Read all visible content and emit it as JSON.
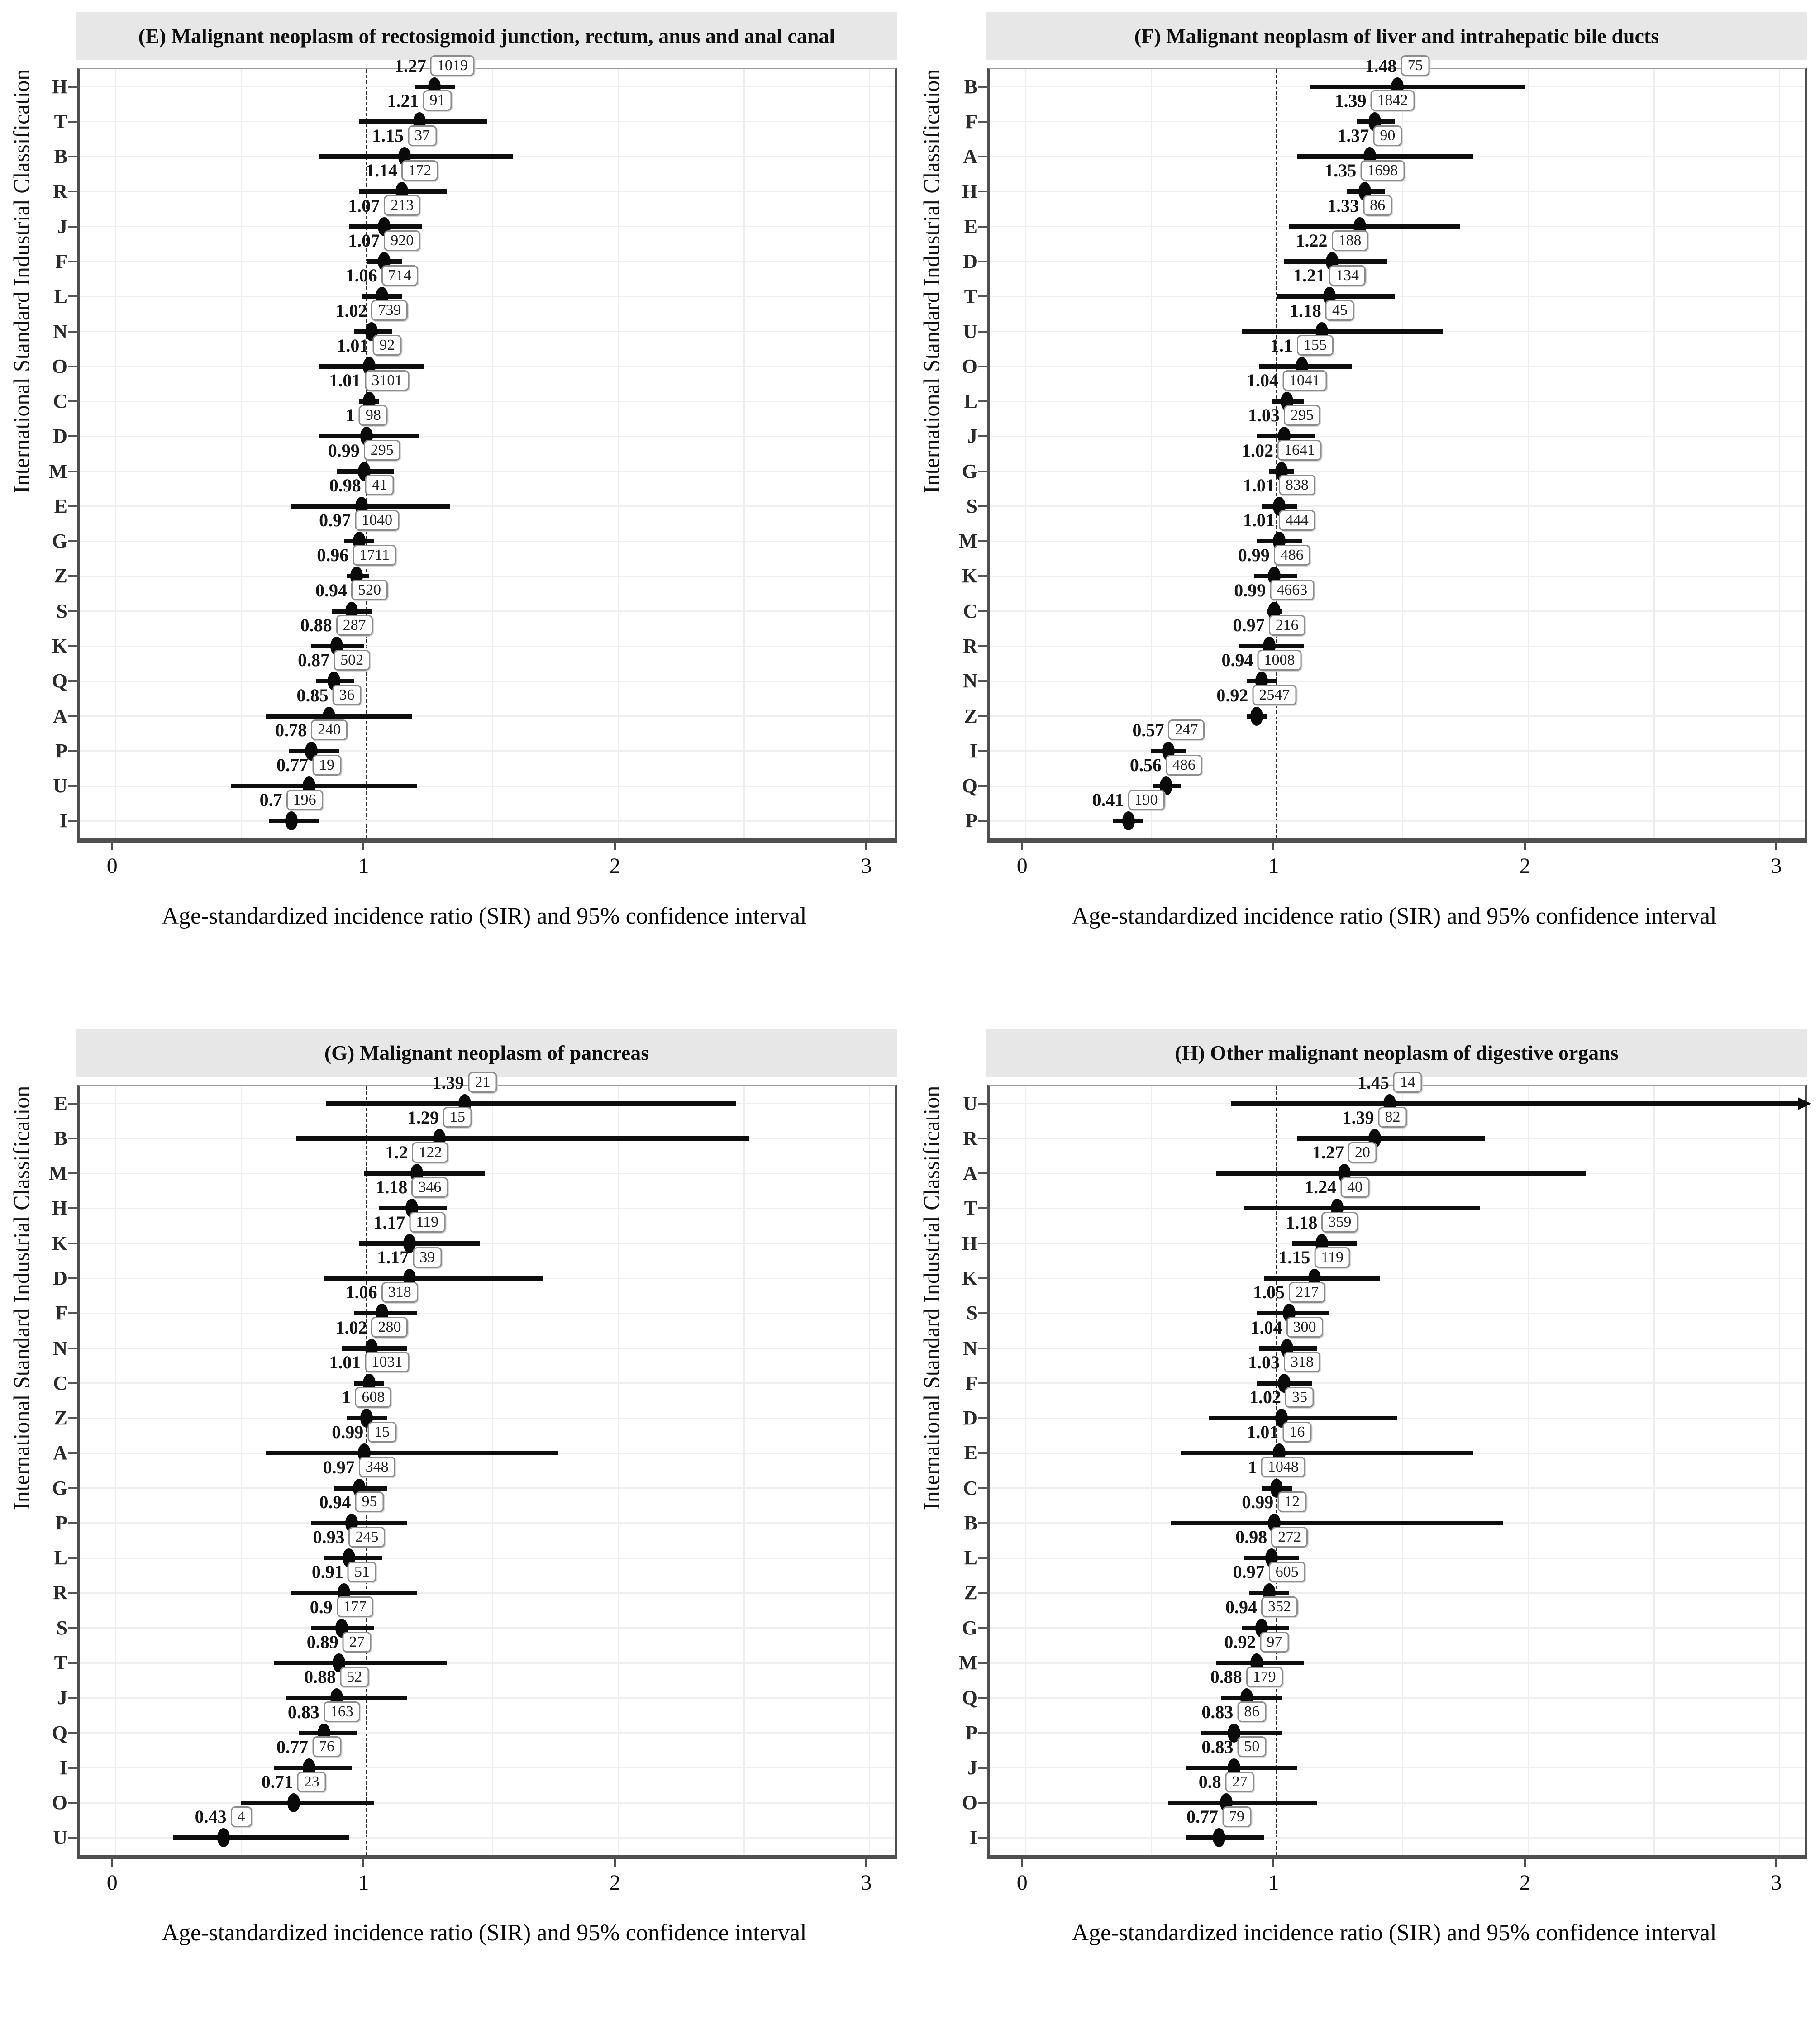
{
  "figure": {
    "ylabel": "International Standard Industrial Classification",
    "xlabel": "Age-standardized incidence ratio (SIR) and 95% confidence interval",
    "x_ticks": [
      0,
      1,
      2,
      3
    ],
    "x_min": -0.14,
    "x_max": 3.1,
    "ref_line": 1,
    "gridline_values": [
      0,
      0.5,
      1.5,
      2,
      2.5,
      3
    ],
    "point_color": "#0a0a0a",
    "title_bg": "#e7e7e7"
  },
  "chart_data": [
    {
      "type": "scatter",
      "panel": "E",
      "title": "(E) Malignant neoplasm of rectosigmoid junction, rectum, anus and anal canal",
      "xlabel": "Age-standardized incidence ratio (SIR) and 95% confidence interval",
      "ylabel": "International Standard Industrial Classification",
      "xlim": [
        -0.14,
        3.1
      ],
      "points": [
        {
          "category": "H",
          "sir": "1.27",
          "n": 1019,
          "ci_low": 1.19,
          "ci_high": 1.35
        },
        {
          "category": "T",
          "sir": "1.21",
          "n": 91,
          "ci_low": 0.97,
          "ci_high": 1.48
        },
        {
          "category": "B",
          "sir": "1.15",
          "n": 37,
          "ci_low": 0.81,
          "ci_high": 1.58
        },
        {
          "category": "R",
          "sir": "1.14",
          "n": 172,
          "ci_low": 0.97,
          "ci_high": 1.32
        },
        {
          "category": "J",
          "sir": "1.07",
          "n": 213,
          "ci_low": 0.93,
          "ci_high": 1.22
        },
        {
          "category": "F",
          "sir": "1.07",
          "n": 920,
          "ci_low": 1.0,
          "ci_high": 1.14
        },
        {
          "category": "L",
          "sir": "1.06",
          "n": 714,
          "ci_low": 0.98,
          "ci_high": 1.14
        },
        {
          "category": "N",
          "sir": "1.02",
          "n": 739,
          "ci_low": 0.95,
          "ci_high": 1.1
        },
        {
          "category": "O",
          "sir": "1.01",
          "n": 92,
          "ci_low": 0.81,
          "ci_high": 1.23
        },
        {
          "category": "C",
          "sir": "1.01",
          "n": 3101,
          "ci_low": 0.97,
          "ci_high": 1.05
        },
        {
          "category": "D",
          "sir": "1",
          "n": 98,
          "ci_low": 0.81,
          "ci_high": 1.21
        },
        {
          "category": "M",
          "sir": "0.99",
          "n": 295,
          "ci_low": 0.88,
          "ci_high": 1.11
        },
        {
          "category": "E",
          "sir": "0.98",
          "n": 41,
          "ci_low": 0.7,
          "ci_high": 1.33
        },
        {
          "category": "G",
          "sir": "0.97",
          "n": 1040,
          "ci_low": 0.91,
          "ci_high": 1.03
        },
        {
          "category": "Z",
          "sir": "0.96",
          "n": 1711,
          "ci_low": 0.92,
          "ci_high": 1.01
        },
        {
          "category": "S",
          "sir": "0.94",
          "n": 520,
          "ci_low": 0.86,
          "ci_high": 1.02
        },
        {
          "category": "K",
          "sir": "0.88",
          "n": 287,
          "ci_low": 0.78,
          "ci_high": 0.99
        },
        {
          "category": "Q",
          "sir": "0.87",
          "n": 502,
          "ci_low": 0.8,
          "ci_high": 0.95
        },
        {
          "category": "A",
          "sir": "0.85",
          "n": 36,
          "ci_low": 0.6,
          "ci_high": 1.18
        },
        {
          "category": "P",
          "sir": "0.78",
          "n": 240,
          "ci_low": 0.69,
          "ci_high": 0.89
        },
        {
          "category": "U",
          "sir": "0.77",
          "n": 19,
          "ci_low": 0.46,
          "ci_high": 1.2
        },
        {
          "category": "I",
          "sir": "0.7",
          "n": 196,
          "ci_low": 0.61,
          "ci_high": 0.81
        }
      ]
    },
    {
      "type": "scatter",
      "panel": "F",
      "title": "(F) Malignant neoplasm of liver and intrahepatic bile ducts",
      "xlabel": "Age-standardized incidence ratio (SIR) and 95% confidence interval",
      "ylabel": "International Standard Industrial Classification",
      "xlim": [
        -0.14,
        3.1
      ],
      "points": [
        {
          "category": "B",
          "sir": "1.48",
          "n": 75,
          "ci_low": 1.13,
          "ci_high": 1.99
        },
        {
          "category": "F",
          "sir": "1.39",
          "n": 1842,
          "ci_low": 1.32,
          "ci_high": 1.47
        },
        {
          "category": "A",
          "sir": "1.37",
          "n": 90,
          "ci_low": 1.08,
          "ci_high": 1.78
        },
        {
          "category": "H",
          "sir": "1.35",
          "n": 1698,
          "ci_low": 1.28,
          "ci_high": 1.43
        },
        {
          "category": "E",
          "sir": "1.33",
          "n": 86,
          "ci_low": 1.05,
          "ci_high": 1.73
        },
        {
          "category": "D",
          "sir": "1.22",
          "n": 188,
          "ci_low": 1.03,
          "ci_high": 1.44
        },
        {
          "category": "T",
          "sir": "1.21",
          "n": 134,
          "ci_low": 1.0,
          "ci_high": 1.47
        },
        {
          "category": "U",
          "sir": "1.18",
          "n": 45,
          "ci_low": 0.86,
          "ci_high": 1.66
        },
        {
          "category": "O",
          "sir": "1.1",
          "n": 155,
          "ci_low": 0.93,
          "ci_high": 1.3
        },
        {
          "category": "L",
          "sir": "1.04",
          "n": 1041,
          "ci_low": 0.98,
          "ci_high": 1.11
        },
        {
          "category": "J",
          "sir": "1.03",
          "n": 295,
          "ci_low": 0.92,
          "ci_high": 1.15
        },
        {
          "category": "G",
          "sir": "1.02",
          "n": 1641,
          "ci_low": 0.97,
          "ci_high": 1.07
        },
        {
          "category": "S",
          "sir": "1.01",
          "n": 838,
          "ci_low": 0.94,
          "ci_high": 1.08
        },
        {
          "category": "M",
          "sir": "1.01",
          "n": 444,
          "ci_low": 0.92,
          "ci_high": 1.1
        },
        {
          "category": "K",
          "sir": "0.99",
          "n": 486,
          "ci_low": 0.91,
          "ci_high": 1.08
        },
        {
          "category": "C",
          "sir": "0.99",
          "n": 4663,
          "ci_low": 0.96,
          "ci_high": 1.02
        },
        {
          "category": "R",
          "sir": "0.97",
          "n": 216,
          "ci_low": 0.85,
          "ci_high": 1.11
        },
        {
          "category": "N",
          "sir": "0.94",
          "n": 1008,
          "ci_low": 0.88,
          "ci_high": 1.0
        },
        {
          "category": "Z",
          "sir": "0.92",
          "n": 2547,
          "ci_low": 0.88,
          "ci_high": 0.96
        },
        {
          "category": "I",
          "sir": "0.57",
          "n": 247,
          "ci_low": 0.5,
          "ci_high": 0.64
        },
        {
          "category": "Q",
          "sir": "0.56",
          "n": 486,
          "ci_low": 0.51,
          "ci_high": 0.62
        },
        {
          "category": "P",
          "sir": "0.41",
          "n": 190,
          "ci_low": 0.35,
          "ci_high": 0.47
        }
      ]
    },
    {
      "type": "scatter",
      "panel": "G",
      "title": "(G) Malignant neoplasm of pancreas",
      "xlabel": "Age-standardized incidence ratio (SIR) and 95% confidence interval",
      "ylabel": "International Standard Industrial Classification",
      "xlim": [
        -0.14,
        3.1
      ],
      "points": [
        {
          "category": "E",
          "sir": "1.39",
          "n": 21,
          "ci_low": 0.84,
          "ci_high": 2.47
        },
        {
          "category": "B",
          "sir": "1.29",
          "n": 15,
          "ci_low": 0.72,
          "ci_high": 2.52
        },
        {
          "category": "M",
          "sir": "1.2",
          "n": 122,
          "ci_low": 0.99,
          "ci_high": 1.47
        },
        {
          "category": "H",
          "sir": "1.18",
          "n": 346,
          "ci_low": 1.05,
          "ci_high": 1.32
        },
        {
          "category": "K",
          "sir": "1.17",
          "n": 119,
          "ci_low": 0.97,
          "ci_high": 1.45
        },
        {
          "category": "D",
          "sir": "1.17",
          "n": 39,
          "ci_low": 0.83,
          "ci_high": 1.7
        },
        {
          "category": "F",
          "sir": "1.06",
          "n": 318,
          "ci_low": 0.95,
          "ci_high": 1.2
        },
        {
          "category": "N",
          "sir": "1.02",
          "n": 280,
          "ci_low": 0.9,
          "ci_high": 1.16
        },
        {
          "category": "C",
          "sir": "1.01",
          "n": 1031,
          "ci_low": 0.95,
          "ci_high": 1.07
        },
        {
          "category": "Z",
          "sir": "1",
          "n": 608,
          "ci_low": 0.92,
          "ci_high": 1.08
        },
        {
          "category": "A",
          "sir": "0.99",
          "n": 15,
          "ci_low": 0.6,
          "ci_high": 1.76
        },
        {
          "category": "G",
          "sir": "0.97",
          "n": 348,
          "ci_low": 0.87,
          "ci_high": 1.08
        },
        {
          "category": "P",
          "sir": "0.94",
          "n": 95,
          "ci_low": 0.78,
          "ci_high": 1.16
        },
        {
          "category": "L",
          "sir": "0.93",
          "n": 245,
          "ci_low": 0.83,
          "ci_high": 1.06
        },
        {
          "category": "R",
          "sir": "0.91",
          "n": 51,
          "ci_low": 0.7,
          "ci_high": 1.2
        },
        {
          "category": "S",
          "sir": "0.9",
          "n": 177,
          "ci_low": 0.78,
          "ci_high": 1.03
        },
        {
          "category": "T",
          "sir": "0.89",
          "n": 27,
          "ci_low": 0.63,
          "ci_high": 1.32
        },
        {
          "category": "J",
          "sir": "0.88",
          "n": 52,
          "ci_low": 0.68,
          "ci_high": 1.16
        },
        {
          "category": "Q",
          "sir": "0.83",
          "n": 163,
          "ci_low": 0.73,
          "ci_high": 0.96
        },
        {
          "category": "I",
          "sir": "0.77",
          "n": 76,
          "ci_low": 0.63,
          "ci_high": 0.94
        },
        {
          "category": "O",
          "sir": "0.71",
          "n": 23,
          "ci_low": 0.5,
          "ci_high": 1.03
        },
        {
          "category": "U",
          "sir": "0.43",
          "n": 4,
          "ci_low": 0.23,
          "ci_high": 0.93
        }
      ]
    },
    {
      "type": "scatter",
      "panel": "H",
      "title": "(H) Other malignant neoplasm of digestive organs",
      "xlabel": "Age-standardized incidence ratio (SIR) and 95% confidence interval",
      "ylabel": "International Standard Industrial Classification",
      "xlim": [
        -0.14,
        3.1
      ],
      "points": [
        {
          "category": "U",
          "sir": "1.45",
          "n": 14,
          "ci_low": 0.82,
          "ci_high": 3.08,
          "arrow": true
        },
        {
          "category": "R",
          "sir": "1.39",
          "n": 82,
          "ci_low": 1.08,
          "ci_high": 1.83
        },
        {
          "category": "A",
          "sir": "1.27",
          "n": 20,
          "ci_low": 0.76,
          "ci_high": 2.23
        },
        {
          "category": "T",
          "sir": "1.24",
          "n": 40,
          "ci_low": 0.87,
          "ci_high": 1.81
        },
        {
          "category": "H",
          "sir": "1.18",
          "n": 359,
          "ci_low": 1.06,
          "ci_high": 1.32
        },
        {
          "category": "K",
          "sir": "1.15",
          "n": 119,
          "ci_low": 0.95,
          "ci_high": 1.41
        },
        {
          "category": "S",
          "sir": "1.05",
          "n": 217,
          "ci_low": 0.92,
          "ci_high": 1.21
        },
        {
          "category": "N",
          "sir": "1.04",
          "n": 300,
          "ci_low": 0.93,
          "ci_high": 1.16
        },
        {
          "category": "F",
          "sir": "1.03",
          "n": 318,
          "ci_low": 0.92,
          "ci_high": 1.14
        },
        {
          "category": "D",
          "sir": "1.02",
          "n": 35,
          "ci_low": 0.73,
          "ci_high": 1.48
        },
        {
          "category": "E",
          "sir": "1.01",
          "n": 16,
          "ci_low": 0.62,
          "ci_high": 1.78
        },
        {
          "category": "C",
          "sir": "1",
          "n": 1048,
          "ci_low": 0.94,
          "ci_high": 1.06
        },
        {
          "category": "B",
          "sir": "0.99",
          "n": 12,
          "ci_low": 0.58,
          "ci_high": 1.9
        },
        {
          "category": "L",
          "sir": "0.98",
          "n": 272,
          "ci_low": 0.87,
          "ci_high": 1.09
        },
        {
          "category": "Z",
          "sir": "0.97",
          "n": 605,
          "ci_low": 0.89,
          "ci_high": 1.05
        },
        {
          "category": "G",
          "sir": "0.94",
          "n": 352,
          "ci_low": 0.86,
          "ci_high": 1.05
        },
        {
          "category": "M",
          "sir": "0.92",
          "n": 97,
          "ci_low": 0.76,
          "ci_high": 1.11
        },
        {
          "category": "Q",
          "sir": "0.88",
          "n": 179,
          "ci_low": 0.78,
          "ci_high": 1.02
        },
        {
          "category": "P",
          "sir": "0.83",
          "n": 86,
          "ci_low": 0.7,
          "ci_high": 1.02
        },
        {
          "category": "J",
          "sir": "0.83",
          "n": 50,
          "ci_low": 0.64,
          "ci_high": 1.08
        },
        {
          "category": "O",
          "sir": "0.8",
          "n": 27,
          "ci_low": 0.57,
          "ci_high": 1.16
        },
        {
          "category": "I",
          "sir": "0.77",
          "n": 79,
          "ci_low": 0.64,
          "ci_high": 0.95
        }
      ]
    }
  ]
}
